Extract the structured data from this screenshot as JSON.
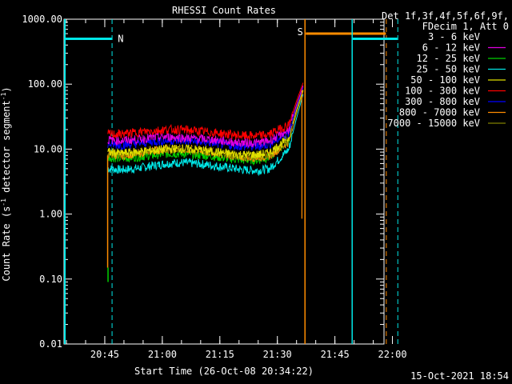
{
  "chart_data": {
    "type": "line",
    "title": "RHESSI Count Rates",
    "xlabel": "Start Time (26-Oct-08 20:34:22)",
    "ylabel_main": "Count Rate (s",
    "ylabel_sup": "-1",
    "ylabel_tail": " detector segment",
    "ylabel_sup2": "-1",
    "ylabel_close": ")",
    "y_scale": "log",
    "ylim": [
      0.01,
      1000
    ],
    "xlim_min": [
      34.37,
      117.8
    ],
    "x_ticks": [
      {
        "min": 45,
        "label": "20:45"
      },
      {
        "min": 60,
        "label": "21:00"
      },
      {
        "min": 75,
        "label": "21:15"
      },
      {
        "min": 90,
        "label": "21:30"
      },
      {
        "min": 105,
        "label": "21:45"
      },
      {
        "min": 120,
        "label": "22:00"
      }
    ],
    "y_ticks": [
      {
        "value": 1000,
        "label": "1000.00"
      },
      {
        "value": 100,
        "label": "100.00"
      },
      {
        "value": 10,
        "label": "10.00"
      },
      {
        "value": 1,
        "label": "1.00"
      },
      {
        "value": 0.1,
        "label": "0.10"
      },
      {
        "value": 0.01,
        "label": "0.01"
      }
    ],
    "legend_header": [
      "Det 1f,3f,4f,5f,6f,9f,",
      "FDecim 1, Att 0"
    ],
    "series": [
      {
        "name": "3 - 6 keV",
        "color": "#000000",
        "values": [
          11,
          10,
          10.5,
          11,
          11.5,
          11,
          10.5,
          9.8,
          9,
          8.8,
          9.2,
          10,
          15,
          40,
          85
        ]
      },
      {
        "name": "6 - 12 keV",
        "color": "#e000e0",
        "values": [
          14,
          13.5,
          14,
          15,
          15.5,
          15,
          14.5,
          14,
          13,
          12.5,
          12.5,
          13.5,
          20,
          48,
          95
        ]
      },
      {
        "name": "12 - 25 keV",
        "color": "#00d000",
        "values": [
          7.5,
          7.2,
          7.5,
          8,
          8.5,
          8.6,
          8.2,
          7.8,
          7.2,
          6.8,
          6.8,
          7.5,
          14,
          38,
          80
        ]
      },
      {
        "name": "25 - 50 keV",
        "color": "#00e8e8",
        "values": [
          5,
          4.8,
          5,
          5.5,
          6,
          6.2,
          6,
          5.6,
          5.2,
          4.8,
          4.7,
          5,
          10,
          30,
          70
        ]
      },
      {
        "name": "50 - 100 keV",
        "color": "#e0e000",
        "values": [
          9,
          8.6,
          9,
          9.5,
          10,
          10.2,
          9.8,
          9.2,
          8.6,
          8.2,
          8.2,
          8.8,
          15,
          40,
          82
        ]
      },
      {
        "name": "100 - 300 keV",
        "color": "#ff0000",
        "values": [
          17,
          17,
          18,
          19,
          20,
          20,
          19,
          18,
          17,
          16,
          16,
          17,
          24,
          55,
          105
        ]
      },
      {
        "name": "300 - 800 keV",
        "color": "#0000ff",
        "values": [
          12,
          11.5,
          12,
          13,
          13.5,
          13.5,
          13,
          12.5,
          11.5,
          11,
          11,
          12,
          18,
          45,
          90
        ]
      },
      {
        "name": "800 - 7000 keV",
        "color": "#ff8c00",
        "values": [
          8.5,
          8,
          8.5,
          9.5,
          10,
          10.3,
          9.8,
          9,
          8.2,
          7.6,
          7.5,
          8,
          13,
          36,
          78
        ]
      },
      {
        "name": "7000 - 15000 keV",
        "color": "#808000",
        "values": [
          8.8,
          8.3,
          8.8,
          9.5,
          10,
          10.2,
          9.6,
          8.9,
          8.2,
          7.8,
          7.8,
          8.3,
          14,
          38,
          80
        ]
      }
    ],
    "series_x_min": [
      45.8,
      49,
      53,
      57,
      61,
      65,
      69,
      73,
      77,
      81,
      85,
      88,
      93,
      95,
      96.7
    ],
    "annotations": [
      {
        "text": "N",
        "color": "#00e8e8"
      },
      {
        "text": "S",
        "color": "#ff8c00"
      }
    ],
    "timestamp": "15-Oct-2021 18:54"
  },
  "colors": {
    "night": "#00e8e8",
    "saa": "#ff8c00",
    "axis": "#ffffff"
  }
}
